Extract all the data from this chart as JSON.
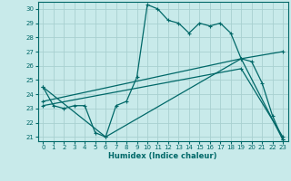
{
  "title": "",
  "xlabel": "Humidex (Indice chaleur)",
  "bg_color": "#c8eaea",
  "grid_color": "#a8d0d0",
  "line_color": "#006868",
  "xlim": [
    -0.5,
    23.5
  ],
  "ylim": [
    20.7,
    30.5
  ],
  "xticks": [
    0,
    1,
    2,
    3,
    4,
    5,
    6,
    7,
    8,
    9,
    10,
    11,
    12,
    13,
    14,
    15,
    16,
    17,
    18,
    19,
    20,
    21,
    22,
    23
  ],
  "yticks": [
    21,
    22,
    23,
    24,
    25,
    26,
    27,
    28,
    29,
    30
  ],
  "series1_x": [
    0,
    1,
    2,
    3,
    4,
    5,
    6,
    7,
    8,
    9,
    10,
    11,
    12,
    13,
    14,
    15,
    16,
    17,
    18,
    19,
    20,
    21,
    22,
    23
  ],
  "series1_y": [
    24.5,
    23.2,
    23.0,
    23.2,
    23.2,
    21.3,
    21.0,
    23.2,
    23.5,
    25.2,
    30.3,
    30.0,
    29.2,
    29.0,
    28.3,
    29.0,
    28.8,
    29.0,
    28.3,
    26.5,
    26.3,
    24.8,
    22.5,
    20.8
  ],
  "series2_x": [
    0,
    6,
    19,
    23
  ],
  "series2_y": [
    24.5,
    21.0,
    26.5,
    20.8
  ],
  "series3_x": [
    0,
    19,
    23
  ],
  "series3_y": [
    23.5,
    26.5,
    27.0
  ],
  "series4_x": [
    0,
    19,
    23
  ],
  "series4_y": [
    23.2,
    25.8,
    21.0
  ]
}
